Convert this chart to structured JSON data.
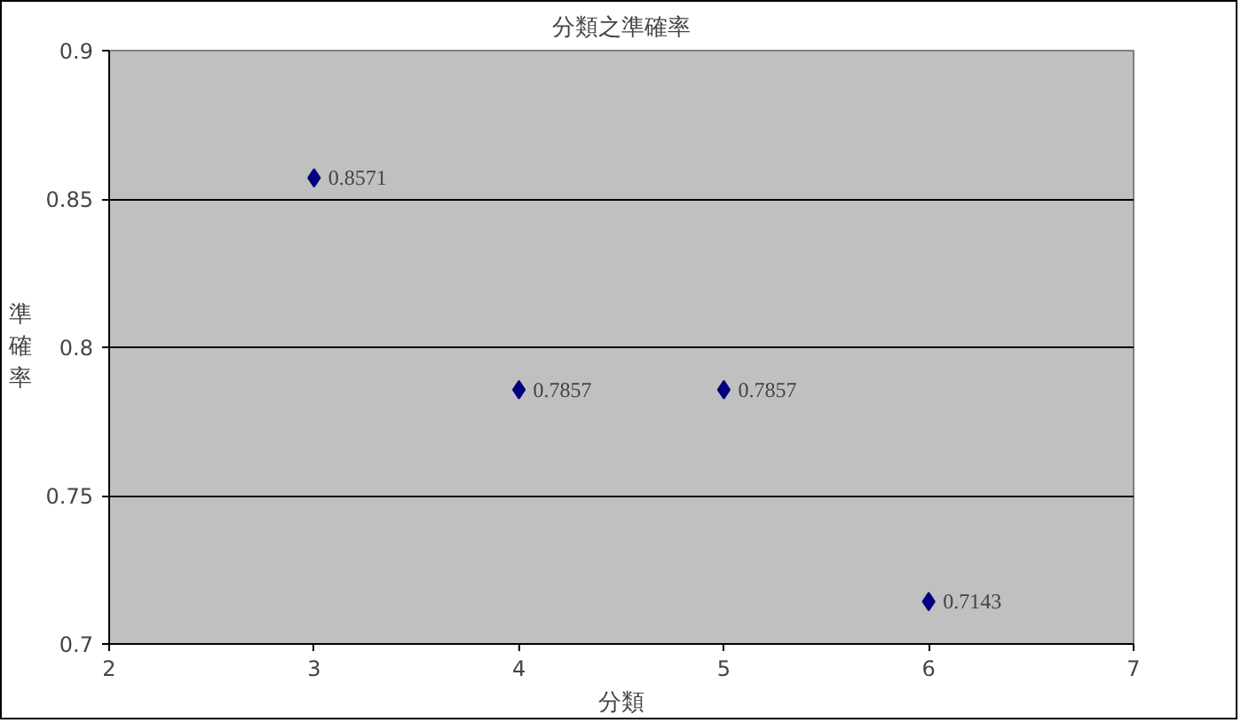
{
  "chart_data": {
    "type": "scatter",
    "title": "分類之準確率",
    "xlabel": "分類",
    "ylabel": "準確率",
    "x": [
      3,
      4,
      5,
      6
    ],
    "series": [
      {
        "color": "#000080",
        "values": [
          0.8571,
          0.7857,
          0.7857,
          0.7143
        ]
      }
    ],
    "xlim": [
      2,
      7
    ],
    "xticks": [
      2,
      3,
      4,
      5,
      6,
      7
    ],
    "ylim": [
      0.7,
      0.9
    ],
    "yticks": [
      0.7,
      0.75,
      0.8,
      0.85,
      0.9
    ],
    "grid": "y",
    "marker": "diamond",
    "data_labels": true
  }
}
